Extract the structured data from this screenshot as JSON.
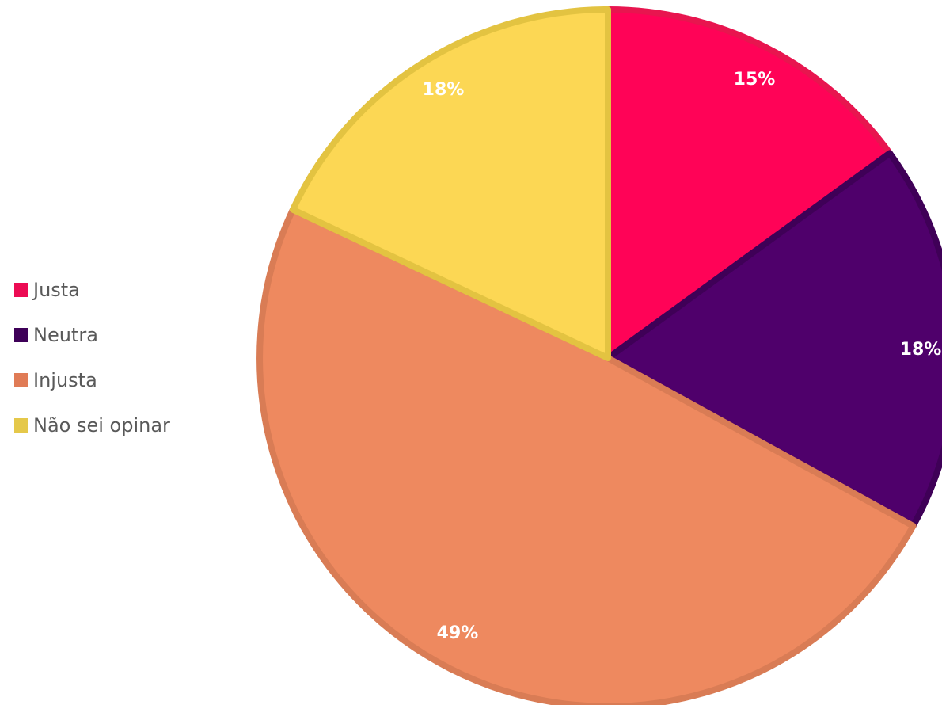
{
  "chart_data": {
    "type": "pie",
    "title": "",
    "start_angle_deg": 0,
    "direction": "clockwise",
    "legend_position": "left",
    "categories": [
      "Justa",
      "Neutra",
      "Injusta",
      "Não sei opinar"
    ],
    "values": [
      15,
      18,
      49,
      18
    ],
    "value_labels": [
      "15%",
      "18%",
      "49%",
      "18%"
    ],
    "colors": [
      "#ff0357",
      "#4f006b",
      "#ee895f",
      "#fcd754"
    ],
    "border_colors": [
      "#e8154f",
      "#3f0057",
      "#d97c55",
      "#e3c341"
    ],
    "legend_swatch_colors": [
      "#ec0b53",
      "#3e0058",
      "#e07b56",
      "#e5c84a"
    ]
  }
}
